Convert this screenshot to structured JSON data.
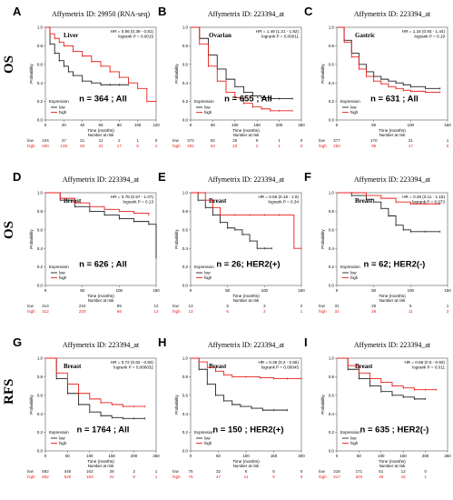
{
  "rows": [
    {
      "tag": "OS",
      "letters": [
        "A",
        "B",
        "C"
      ]
    },
    {
      "tag": "OS",
      "letters": [
        "D",
        "E",
        "F"
      ]
    },
    {
      "tag": "RFS",
      "letters": [
        "G",
        "H",
        "I"
      ]
    }
  ],
  "colors": {
    "low": "#222222",
    "high": "#e8211d"
  },
  "common": {
    "ylabel": "Probability",
    "xlabel": "Time (months)",
    "legend_title": "Expression",
    "legend_low": "low",
    "legend_high": "high",
    "risk_title": "Number at risk",
    "risk_low": "low",
    "risk_high": "high"
  },
  "chart_data": [
    {
      "type": "line",
      "letter": "A",
      "title": "Affymetrix ID: 29950 (RNA-seq)",
      "tissue": "Liver",
      "stats": [
        "HR = 0.56 (0.39 - 0.81)",
        "logrank P = 0.0015"
      ],
      "label": "n = 364 ; All",
      "xlim": [
        0,
        120
      ],
      "ylim": [
        0,
        1
      ],
      "xticks": [
        0,
        20,
        40,
        60,
        80,
        100,
        120
      ],
      "yticks": [
        0,
        0.2,
        0.4,
        0.6,
        0.8,
        1
      ],
      "series": [
        {
          "name": "low",
          "x": [
            0,
            5,
            10,
            15,
            20,
            25,
            30,
            40,
            50,
            60,
            70,
            80,
            90
          ],
          "y": [
            1,
            0.82,
            0.72,
            0.64,
            0.58,
            0.52,
            0.48,
            0.42,
            0.4,
            0.38,
            0.38,
            0.38,
            0.38
          ]
        },
        {
          "name": "high",
          "x": [
            0,
            5,
            10,
            15,
            20,
            30,
            40,
            50,
            60,
            70,
            80,
            90,
            100,
            110,
            120
          ],
          "y": [
            1,
            0.93,
            0.88,
            0.84,
            0.8,
            0.74,
            0.69,
            0.63,
            0.58,
            0.52,
            0.46,
            0.4,
            0.34,
            0.2,
            0.2
          ]
        }
      ],
      "risk": {
        "x": [
          "0",
          "20",
          "40",
          "60",
          "80",
          "100",
          "120"
        ],
        "low": [
          "104",
          "47",
          "21",
          "11",
          "2",
          "1",
          "0"
        ],
        "high": [
          "260",
          "135",
          "63",
          "31",
          "17",
          "5",
          "1"
        ]
      }
    },
    {
      "type": "line",
      "letter": "B",
      "title": "Affymetrix ID: 223394_at",
      "tissue": "Ovarian",
      "stats": [
        "HR = 1.49 (1.21 - 1.82)",
        "logrank P = 0.00011"
      ],
      "label": "n = 655 ; All",
      "xlim": [
        0,
        250
      ],
      "ylim": [
        0,
        1
      ],
      "xticks": [
        0,
        50,
        100,
        150,
        200,
        250
      ],
      "yticks": [
        0,
        0.2,
        0.4,
        0.6,
        0.8,
        1
      ],
      "series": [
        {
          "name": "low",
          "x": [
            0,
            20,
            40,
            60,
            80,
            100,
            120,
            140,
            160,
            180,
            200,
            230
          ],
          "y": [
            1,
            0.88,
            0.7,
            0.55,
            0.44,
            0.36,
            0.3,
            0.26,
            0.24,
            0.23,
            0.23,
            0.23
          ]
        },
        {
          "name": "high",
          "x": [
            0,
            20,
            40,
            60,
            80,
            100,
            120,
            140,
            160,
            180,
            200,
            230
          ],
          "y": [
            1,
            0.82,
            0.58,
            0.42,
            0.3,
            0.24,
            0.18,
            0.14,
            0.12,
            0.1,
            0.1,
            0.1
          ]
        }
      ],
      "risk": {
        "x": [
          "0",
          "50",
          "100",
          "150",
          "200",
          "250"
        ],
        "low": [
          "374",
          "82",
          "25",
          "6",
          "1",
          "0"
        ],
        "high": [
          "281",
          "64",
          "23",
          "2",
          "1",
          "0"
        ]
      }
    },
    {
      "type": "line",
      "letter": "C",
      "title": "Affymetrix ID: 223394_at",
      "tissue": "Gastric",
      "stats": [
        "HR = 1.16 (0.93 - 1.44)",
        "logrank P = 0.19"
      ],
      "label": "n = 631 ; All",
      "xlim": [
        0,
        150
      ],
      "ylim": [
        0,
        1
      ],
      "xticks": [
        0,
        50,
        100,
        150
      ],
      "yticks": [
        0,
        0.2,
        0.4,
        0.6,
        0.8,
        1
      ],
      "series": [
        {
          "name": "low",
          "x": [
            0,
            10,
            20,
            30,
            40,
            50,
            60,
            70,
            80,
            90,
            100,
            120,
            140
          ],
          "y": [
            1,
            0.86,
            0.72,
            0.6,
            0.52,
            0.47,
            0.44,
            0.42,
            0.4,
            0.38,
            0.36,
            0.34,
            0.34
          ]
        },
        {
          "name": "high",
          "x": [
            0,
            10,
            20,
            30,
            40,
            50,
            60,
            70,
            80,
            90,
            100,
            120,
            140
          ],
          "y": [
            1,
            0.84,
            0.68,
            0.55,
            0.47,
            0.42,
            0.39,
            0.36,
            0.34,
            0.32,
            0.31,
            0.3,
            0.3
          ]
        }
      ],
      "risk": {
        "x": [
          "0",
          "50",
          "100",
          "150"
        ],
        "low": [
          "377",
          "170",
          "31",
          "1"
        ],
        "high": [
          "254",
          "95",
          "17",
          "0"
        ]
      }
    },
    {
      "type": "line",
      "letter": "D",
      "title": "Affymetrix ID: 223394_at",
      "tissue": "Breast",
      "stats": [
        "HR = 0.78 (0.57 - 1.07)",
        "logrank P = 0.13"
      ],
      "label": "n = 626 ; All",
      "xlim": [
        0,
        150
      ],
      "ylim": [
        0,
        1
      ],
      "xticks": [
        0,
        50,
        100,
        150
      ],
      "yticks": [
        0,
        0.2,
        0.4,
        0.6,
        0.8,
        1
      ],
      "series": [
        {
          "name": "low",
          "x": [
            0,
            20,
            40,
            60,
            80,
            100,
            120,
            140,
            150,
            150
          ],
          "y": [
            1,
            0.92,
            0.85,
            0.8,
            0.76,
            0.72,
            0.69,
            0.66,
            0.64,
            0.3
          ]
        },
        {
          "name": "high",
          "x": [
            0,
            20,
            40,
            60,
            80,
            100,
            120,
            140
          ],
          "y": [
            1,
            0.94,
            0.89,
            0.85,
            0.82,
            0.8,
            0.78,
            0.76
          ]
        }
      ],
      "risk": {
        "x": [
          "0",
          "50",
          "100",
          "150"
        ],
        "low": [
          "314",
          "234",
          "95",
          "12"
        ],
        "high": [
          "312",
          "220",
          "66",
          "13"
        ]
      }
    },
    {
      "type": "line",
      "letter": "E",
      "title": "Affymetrix ID: 223394_at",
      "tissue": "Breast",
      "stats": [
        "HR = 0.56 (0.16 - 1.9)",
        "logrank P = 0.34"
      ],
      "label": "n = 26; HER2(+)",
      "xlim": [
        0,
        150
      ],
      "ylim": [
        0,
        1
      ],
      "xticks": [
        0,
        50,
        100,
        150
      ],
      "yticks": [
        0,
        0.2,
        0.4,
        0.6,
        0.8,
        1
      ],
      "series": [
        {
          "name": "low",
          "x": [
            0,
            10,
            20,
            30,
            40,
            50,
            60,
            70,
            80,
            90,
            100,
            110
          ],
          "y": [
            1,
            0.92,
            0.84,
            0.76,
            0.68,
            0.62,
            0.6,
            0.55,
            0.48,
            0.4,
            0.4,
            0.4
          ]
        },
        {
          "name": "high",
          "x": [
            0,
            10,
            20,
            30,
            40,
            60,
            80,
            100,
            120,
            140,
            150
          ],
          "y": [
            1,
            1,
            0.92,
            0.84,
            0.76,
            0.76,
            0.76,
            0.76,
            0.76,
            0.4,
            0.4
          ]
        }
      ],
      "risk": {
        "x": [
          "0",
          "50",
          "100",
          "150"
        ],
        "low": [
          "13",
          "8",
          "3",
          "2"
        ],
        "high": [
          "13",
          "6",
          "3",
          "1"
        ]
      }
    },
    {
      "type": "line",
      "letter": "F",
      "title": "Affymetrix ID: 223394_at",
      "tissue": "Breast",
      "stats": [
        "HR = 0.36 (0.11 - 1.15)",
        "logrank P = 0.073"
      ],
      "label": "n = 62; HER2(-)",
      "xlim": [
        0,
        150
      ],
      "ylim": [
        0,
        1
      ],
      "xticks": [
        0,
        50,
        100,
        150
      ],
      "yticks": [
        0,
        0.2,
        0.4,
        0.6,
        0.8,
        1
      ],
      "series": [
        {
          "name": "low",
          "x": [
            0,
            20,
            40,
            50,
            60,
            70,
            80,
            90,
            100,
            120,
            140
          ],
          "y": [
            1,
            0.97,
            0.93,
            0.9,
            0.83,
            0.75,
            0.65,
            0.6,
            0.58,
            0.58,
            0.58
          ]
        },
        {
          "name": "high",
          "x": [
            0,
            20,
            40,
            60,
            80,
            100,
            120,
            140
          ],
          "y": [
            1,
            1,
            0.97,
            0.94,
            0.9,
            0.88,
            0.88,
            0.88
          ]
        }
      ],
      "risk": {
        "x": [
          "0",
          "50",
          "100",
          "150"
        ],
        "low": [
          "31",
          "29",
          "5",
          "1"
        ],
        "high": [
          "31",
          "28",
          "11",
          "3"
        ]
      }
    },
    {
      "type": "line",
      "letter": "G",
      "title": "Affymetrix ID: 223394_at",
      "tissue": "Breast",
      "stats": [
        "HR = 0.72 (0.62 - 0.84)",
        "logrank P = 0.000032"
      ],
      "label": "n = 1764 ; All",
      "xlim": [
        0,
        250
      ],
      "ylim": [
        0,
        1
      ],
      "xticks": [
        0,
        50,
        100,
        150,
        200,
        250
      ],
      "yticks": [
        0,
        0.2,
        0.4,
        0.6,
        0.8,
        1
      ],
      "series": [
        {
          "name": "low",
          "x": [
            0,
            25,
            50,
            75,
            100,
            125,
            150,
            175,
            200,
            225
          ],
          "y": [
            1,
            0.78,
            0.62,
            0.5,
            0.42,
            0.38,
            0.36,
            0.35,
            0.35,
            0.35
          ]
        },
        {
          "name": "high",
          "x": [
            0,
            25,
            50,
            75,
            100,
            125,
            150,
            175,
            200,
            225
          ],
          "y": [
            1,
            0.84,
            0.72,
            0.62,
            0.56,
            0.52,
            0.5,
            0.48,
            0.48,
            0.48
          ]
        }
      ],
      "risk": {
        "x": [
          "0",
          "50",
          "100",
          "150",
          "200",
          "250"
        ],
        "low": [
          "882",
          "448",
          "162",
          "28",
          "2",
          "1"
        ],
        "high": [
          "882",
          "529",
          "183",
          "41",
          "8",
          "1"
        ]
      }
    },
    {
      "type": "line",
      "letter": "H",
      "title": "Affymetrix ID: 223394_at",
      "tissue": "Breast",
      "stats": [
        "HR = 0.36 (0.2 - 0.66)",
        "logrank P = 0.00045"
      ],
      "label": "n = 150 ; HER2(+)",
      "xlim": [
        0,
        200
      ],
      "ylim": [
        0,
        1
      ],
      "xticks": [
        0,
        50,
        100,
        150,
        200
      ],
      "yticks": [
        0,
        0.2,
        0.4,
        0.6,
        0.8,
        1
      ],
      "series": [
        {
          "name": "low",
          "x": [
            0,
            15,
            30,
            45,
            60,
            75,
            90,
            110,
            130,
            150,
            175
          ],
          "y": [
            1,
            0.88,
            0.72,
            0.6,
            0.54,
            0.5,
            0.48,
            0.46,
            0.44,
            0.44,
            0.44
          ]
        },
        {
          "name": "high",
          "x": [
            0,
            15,
            30,
            45,
            60,
            75,
            100,
            125,
            150,
            175,
            200
          ],
          "y": [
            1,
            0.96,
            0.9,
            0.86,
            0.82,
            0.8,
            0.8,
            0.79,
            0.78,
            0.78,
            0.78
          ]
        }
      ],
      "risk": {
        "x": [
          "0",
          "50",
          "100",
          "150",
          "200"
        ],
        "low": [
          "75",
          "32",
          "8",
          "5",
          "0"
        ],
        "high": [
          "75",
          "47",
          "11",
          "9",
          "0"
        ]
      }
    },
    {
      "type": "line",
      "letter": "I",
      "title": "Affymetrix ID: 223394_at",
      "tissue": "Breast",
      "stats": [
        "HR = 0.68 (0.5 - 0.92)",
        "logrank P = 0.011"
      ],
      "label": "n = 635 ; HER2(-)",
      "xlim": [
        0,
        250
      ],
      "ylim": [
        0,
        1
      ],
      "xticks": [
        0,
        50,
        100,
        150,
        200,
        250
      ],
      "yticks": [
        0,
        0.2,
        0.4,
        0.6,
        0.8,
        1
      ],
      "series": [
        {
          "name": "low",
          "x": [
            0,
            25,
            50,
            75,
            100,
            125,
            150,
            175,
            200
          ],
          "y": [
            1,
            0.88,
            0.78,
            0.7,
            0.64,
            0.6,
            0.58,
            0.56,
            0.56
          ]
        },
        {
          "name": "high",
          "x": [
            0,
            25,
            50,
            75,
            100,
            125,
            150,
            175,
            200,
            225
          ],
          "y": [
            1,
            0.92,
            0.84,
            0.78,
            0.74,
            0.7,
            0.68,
            0.66,
            0.66,
            0.66
          ]
        }
      ],
      "risk": {
        "x": [
          "0",
          "50",
          "100",
          "150",
          "200",
          "250"
        ],
        "low": [
          "318",
          "171",
          "51",
          "12",
          "0",
          ""
        ],
        "high": [
          "317",
          "204",
          "48",
          "15",
          "1",
          ""
        ]
      }
    }
  ]
}
